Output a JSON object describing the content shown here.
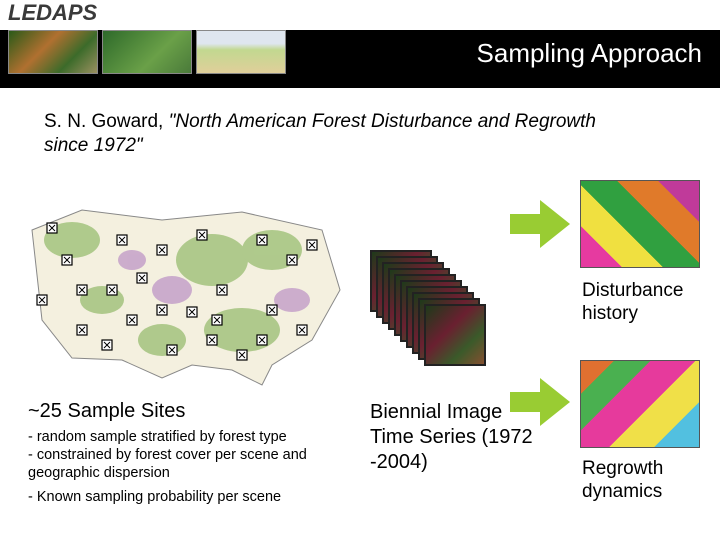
{
  "header": {
    "logo": "LEDAPS",
    "title": "Sampling Approach"
  },
  "citation": {
    "author": "S. N. Goward, ",
    "title": "\"North American Forest Disturbance and Regrowth since 1972\""
  },
  "map": {
    "caption_heading": "~25 Sample Sites",
    "bullet1": " - random sample stratified by forest type",
    "bullet2": "  - constrained by forest cover per scene and geographic dispersion",
    "bullet3": "- Known sampling probability per scene"
  },
  "timeseries": {
    "caption": "Biennial Image Time Series (1972 -2004)",
    "count": 10
  },
  "outputs": {
    "disturbance": "Disturbance history",
    "regrowth": "Regrowth dynamics"
  },
  "colors": {
    "arrow": "#99cc33",
    "bar": "#000000"
  }
}
